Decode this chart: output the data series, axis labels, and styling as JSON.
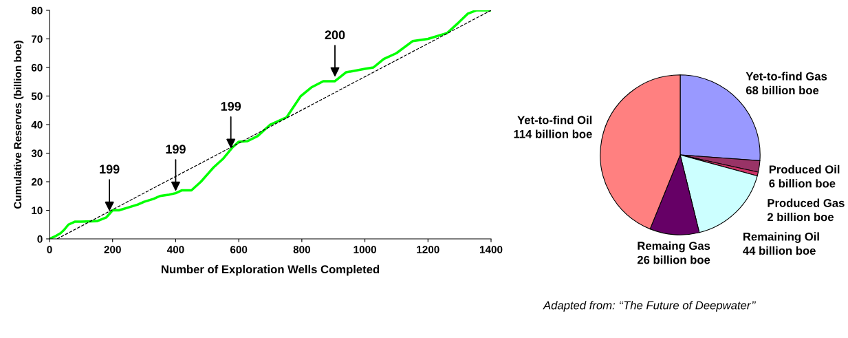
{
  "chart_data": [
    {
      "type": "line",
      "xlabel": "Number of Exploration Wells Completed",
      "ylabel": "Cumulative Reserves (billion boe)",
      "xlim": [
        0,
        1400
      ],
      "ylim": [
        0,
        80
      ],
      "xticks": [
        0,
        200,
        400,
        600,
        800,
        1000,
        1200,
        1400
      ],
      "yticks": [
        0,
        10,
        20,
        30,
        40,
        50,
        60,
        70,
        80
      ],
      "grid": false,
      "legend": false,
      "series": [
        {
          "color": "#00ff00",
          "line_style": "solid",
          "x": [
            0,
            20,
            35,
            45,
            60,
            80,
            100,
            150,
            180,
            200,
            220,
            250,
            280,
            300,
            330,
            350,
            380,
            400,
            420,
            450,
            480,
            520,
            550,
            580,
            600,
            628,
            660,
            700,
            752,
            796,
            830,
            868,
            905,
            940,
            1000,
            1027,
            1060,
            1100,
            1151,
            1200,
            1260,
            1297,
            1326,
            1354,
            1400
          ],
          "values": [
            0,
            1,
            2,
            3,
            5,
            6,
            6,
            6.2,
            7.5,
            10,
            10,
            11,
            12,
            13,
            14,
            15,
            15.5,
            16,
            17,
            17,
            20,
            25,
            28,
            32,
            34,
            34.2,
            36,
            40,
            42.6,
            49.9,
            53,
            55.2,
            55.2,
            58.3,
            59.5,
            60,
            63,
            65,
            69.2,
            70,
            72,
            75.7,
            78.8,
            80,
            80
          ]
        },
        {
          "color": "#000000",
          "line_style": "dashed",
          "x": [
            24,
            1400
          ],
          "values": [
            0,
            80
          ]
        }
      ],
      "annotations": [
        {
          "text": "199",
          "x": 190,
          "y": 9
        },
        {
          "text": "199",
          "x": 400,
          "y": 16
        },
        {
          "text": "199",
          "x": 575,
          "y": 31
        },
        {
          "text": "200",
          "x": 905,
          "y": 56
        }
      ]
    },
    {
      "type": "pie",
      "categories": [
        "Yet-to-find Gas",
        "Produced Oil",
        "Produced Gas",
        "Remaining Oil",
        "Remaing Gas",
        "Yet-to-find Oil"
      ],
      "values": [
        68,
        6,
        2,
        44,
        26,
        114
      ],
      "value_labels": [
        "68 billion boe",
        "6 billion boe",
        "2 billion boe",
        "44 billion boe",
        "26 billion boe",
        "114 billion boe"
      ],
      "colors": [
        "#9999ff",
        "#993366",
        "#cc3366",
        "#ccffff",
        "#660066",
        "#ff8080"
      ],
      "annotations": [
        "Adapted from: ‘‘The Future of Deepwater’’"
      ]
    }
  ]
}
